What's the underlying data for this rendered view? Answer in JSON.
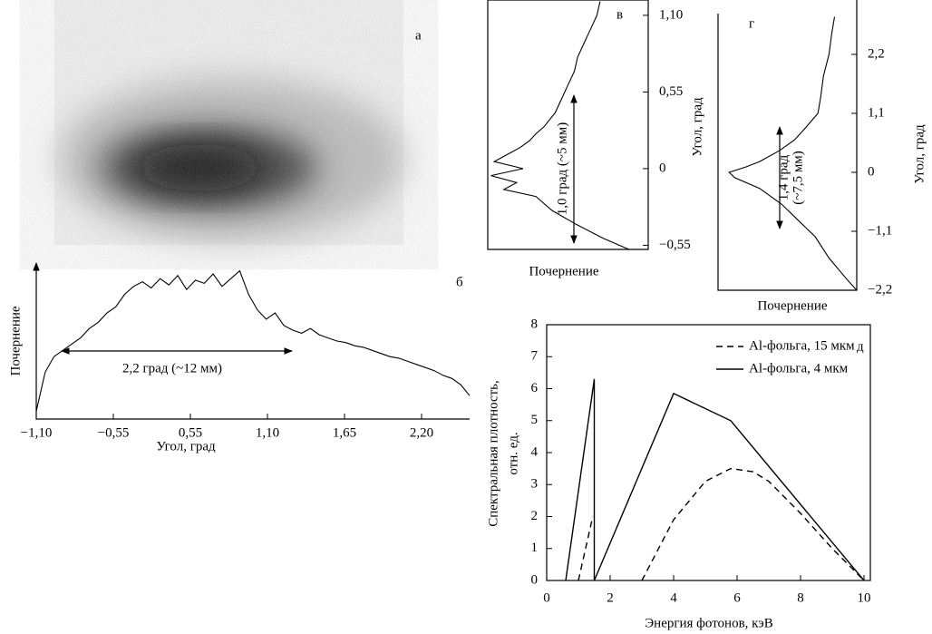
{
  "chart_data": [
    {
      "type": "image",
      "label": "а"
    },
    {
      "type": "line",
      "label": "б",
      "ylabel": "Почернение",
      "xlabel": "Угол, град",
      "annotation": "2,2 град (~12 мм)",
      "xticks": [
        {
          "value": -1.1,
          "label": "−1,10"
        },
        {
          "value": -0.55,
          "label": "−0,55"
        },
        {
          "value": 0.55,
          "label": "0,55"
        },
        {
          "value": 1.1,
          "label": "1,10"
        },
        {
          "value": 1.65,
          "label": "1,65"
        },
        {
          "value": 2.2,
          "label": "2,20"
        }
      ],
      "ylim": [
        0,
        100
      ],
      "color": "#000000",
      "values": [
        5,
        30,
        40,
        44,
        48,
        52,
        58,
        62,
        68,
        72,
        80,
        85,
        88,
        84,
        90,
        86,
        92,
        83,
        89,
        87,
        93,
        85,
        90,
        95,
        80,
        70,
        64,
        68,
        60,
        57,
        55,
        58,
        54,
        52,
        50,
        49,
        47,
        46,
        44,
        42,
        40,
        39,
        37,
        35,
        33,
        31,
        28,
        26,
        22,
        15
      ]
    },
    {
      "type": "line",
      "orientation": "vertical",
      "label": "в",
      "xlabel": "Почернение",
      "ylabel": "Угол, град",
      "annotation": [
        "1,0 град (~5 мм)"
      ],
      "ylim": [
        -0.58,
        1.21
      ],
      "xlim": [
        0,
        100
      ],
      "color": "#000000",
      "yticks": [
        {
          "value": 1.1,
          "label": "1,10"
        },
        {
          "value": 0.55,
          "label": "0,55"
        },
        0,
        {
          "value": -0.55,
          "label": "−0,55"
        }
      ],
      "y": [
        1.2,
        1.1,
        1.0,
        0.9,
        0.8,
        0.7,
        0.6,
        0.5,
        0.4,
        0.3,
        0.25,
        0.2,
        0.15,
        0.1,
        0.05,
        0,
        -0.05,
        -0.1,
        -0.15,
        -0.2,
        -0.3,
        -0.4,
        -0.5,
        -0.58
      ],
      "values": [
        70,
        68,
        64,
        60,
        56,
        54,
        50,
        46,
        42,
        35,
        30,
        26,
        20,
        12,
        4,
        22,
        2,
        18,
        10,
        30,
        40,
        55,
        72,
        88
      ]
    },
    {
      "type": "line",
      "orientation": "vertical",
      "label": "г",
      "xlabel": "Почернение",
      "ylabel": "Угол, град",
      "annotation": [
        "1,4 град",
        "(~7,5 мм)"
      ],
      "ylim": [
        -2.2,
        2.96
      ],
      "xlim": [
        0,
        100
      ],
      "color": "#000000",
      "yticks": [
        {
          "value": 2.2,
          "label": "2,2"
        },
        {
          "value": 1.1,
          "label": "1,1"
        },
        0,
        {
          "value": -1.1,
          "label": "−1,1"
        },
        {
          "value": -2.2,
          "label": "−2,2"
        }
      ],
      "y": [
        2.9,
        2.6,
        2.2,
        1.8,
        1.4,
        1.1,
        0.8,
        0.6,
        0.4,
        0.2,
        0.1,
        0,
        -0.1,
        -0.3,
        -0.6,
        -0.9,
        -1.2,
        -1.6,
        -2.0,
        -2.2
      ],
      "values": [
        84,
        82,
        80,
        76,
        74,
        72,
        62,
        55,
        44,
        30,
        20,
        8,
        12,
        30,
        46,
        58,
        70,
        80,
        93,
        100
      ]
    },
    {
      "type": "line",
      "label": "д",
      "xlabel": "Энергия фотонов, кэВ",
      "ylabel": [
        "Спектральная плотность,",
        "отн. ед."
      ],
      "xlim": [
        0,
        10.2
      ],
      "ylim": [
        0,
        8
      ],
      "xticks": [
        0,
        2,
        4,
        6,
        8,
        10
      ],
      "yticks": [
        0,
        1,
        2,
        3,
        4,
        5,
        6,
        7,
        8
      ],
      "series": [
        {
          "name": "Al-фольга, 15 мкм",
          "color": "#000000",
          "style": "dashed",
          "x": [
            1,
            1.45,
            2,
            3,
            4,
            5,
            5.8,
            6.5,
            7,
            8,
            9,
            10
          ],
          "values": [
            0,
            2,
            null,
            0,
            1.9,
            3.1,
            3.5,
            3.4,
            3.1,
            2.1,
            1.0,
            0
          ]
        },
        {
          "name": "Al-фольга, 4 мкм",
          "color": "#000000",
          "style": "solid",
          "x": [
            0.6,
            1.5,
            1.5,
            4,
            5.8,
            10
          ],
          "values": [
            0,
            6.3,
            0,
            5.85,
            5,
            0
          ]
        }
      ]
    }
  ]
}
